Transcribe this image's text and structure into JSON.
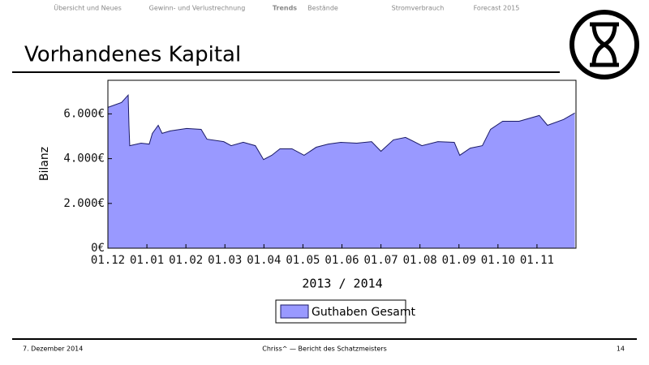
{
  "nav": [
    "Übersicht und Neues",
    "Gewinn- und Verlustrechnung",
    "Trends",
    "Bestände",
    "Stromverbrauch",
    "Forecast 2015"
  ],
  "slide_title": "Vorhandenes Kapital",
  "footer": {
    "date": "7. Dezember 2014",
    "author": "Chriss^ — Bericht des Schatzmeisters",
    "page": "14"
  },
  "chart_data": {
    "type": "area",
    "xlabel": "2013 / 2014",
    "ylabel": "Bilanz",
    "x": [
      0,
      0.35,
      0.52,
      0.54,
      0.56,
      0.85,
      1.06,
      1.14,
      1.29,
      1.39,
      1.6,
      2.02,
      2.39,
      2.54,
      2.97,
      3.16,
      3.47,
      3.78,
      3.99,
      4.2,
      4.41,
      4.72,
      5.03,
      5.34,
      5.65,
      5.97,
      6.38,
      6.76,
      7.0,
      7.32,
      7.63,
      8.05,
      8.46,
      8.88,
      9.02,
      9.29,
      9.6,
      9.81,
      10.12,
      10.54,
      11.06,
      11.27,
      11.68,
      11.97
    ],
    "series": [
      {
        "name": "Guthaben Gesamt",
        "color": "#9999ff",
        "values": [
          6290,
          6510,
          6840,
          5490,
          4580,
          4690,
          4650,
          5130,
          5490,
          5130,
          5240,
          5350,
          5310,
          4870,
          4760,
          4580,
          4730,
          4580,
          3960,
          4150,
          4440,
          4440,
          4150,
          4510,
          4650,
          4730,
          4690,
          4760,
          4330,
          4840,
          4950,
          4580,
          4760,
          4730,
          4150,
          4470,
          4580,
          5310,
          5670,
          5670,
          5930,
          5490,
          5750,
          6040
        ]
      }
    ],
    "line_color": "#1a1a66",
    "xlim": [
      0,
      12
    ],
    "xticks": [
      {
        "value": 0,
        "label": "01.12"
      },
      {
        "value": 1,
        "label": "01.01"
      },
      {
        "value": 2,
        "label": "01.02"
      },
      {
        "value": 3,
        "label": "01.03"
      },
      {
        "value": 4,
        "label": "01.04"
      },
      {
        "value": 5,
        "label": "01.05"
      },
      {
        "value": 6,
        "label": "01.06"
      },
      {
        "value": 7,
        "label": "01.07"
      },
      {
        "value": 8,
        "label": "01.08"
      },
      {
        "value": 9,
        "label": "01.09"
      },
      {
        "value": 10,
        "label": "01.10"
      },
      {
        "value": 11,
        "label": "01.11"
      }
    ],
    "ylim": [
      0,
      7500
    ],
    "yticks": [
      {
        "value": 0,
        "label": "0€"
      },
      {
        "value": 2000,
        "label": "2.000€"
      },
      {
        "value": 4000,
        "label": "4.000€"
      },
      {
        "value": 6000,
        "label": "6.000€"
      }
    ]
  }
}
